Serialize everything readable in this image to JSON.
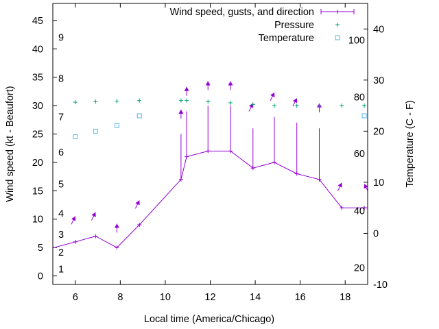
{
  "chart_data": {
    "type": "line",
    "xlabel": "Local time (America/Chicago)",
    "ylabel": "Wind speed (kt - Beaufort)",
    "y2label": "Temperature (C - F)",
    "xlim": [
      5,
      19
    ],
    "ylim": [
      -1.5,
      48
    ],
    "y2lim": [
      -10,
      45
    ],
    "x_ticks": [
      6,
      8,
      10,
      12,
      14,
      16,
      18
    ],
    "y_ticks": [
      0,
      5,
      10,
      15,
      20,
      25,
      30,
      35,
      40,
      45
    ],
    "y2_ticks": [
      -10,
      0,
      10,
      20,
      30,
      40
    ],
    "beaufort_labels": [
      {
        "text": "1",
        "y": 1.2
      },
      {
        "text": "2",
        "y": 4.2
      },
      {
        "text": "3",
        "y": 7.3
      },
      {
        "text": "4",
        "y": 11.0
      },
      {
        "text": "5",
        "y": 16.2
      },
      {
        "text": "6",
        "y": 21.8
      },
      {
        "text": "7",
        "y": 28.0
      },
      {
        "text": "8",
        "y": 34.8
      },
      {
        "text": "9",
        "y": 42.0
      }
    ],
    "fahrenheit_labels": [
      {
        "text": "20",
        "y2": -6.7
      },
      {
        "text": "40",
        "y2": 4.4
      },
      {
        "text": "60",
        "y2": 15.6
      },
      {
        "text": "80",
        "y2": 26.7
      },
      {
        "text": "100",
        "y2": 37.8
      }
    ],
    "legend": {
      "position": "top-right",
      "entries": [
        {
          "label": "Wind speed, gusts, and direction",
          "color": "#9400d3"
        },
        {
          "label": "Pressure",
          "color": "#009e73"
        },
        {
          "label": "Temperature",
          "color": "#56b4e9"
        }
      ]
    },
    "series": [
      {
        "name": "Wind speed, gusts, and direction",
        "color": "#9400d3",
        "x": [
          4.6,
          6.0,
          6.9,
          7.85,
          8.85,
          10.7,
          10.95,
          11.9,
          12.9,
          13.9,
          14.85,
          15.85,
          16.85,
          17.85,
          18.85,
          19.3
        ],
        "y": [
          4.5,
          6,
          7,
          5,
          9,
          17,
          21,
          22,
          22,
          19,
          20,
          18,
          17,
          12,
          12,
          12
        ],
        "gusts": [
          null,
          null,
          null,
          null,
          null,
          25,
          29,
          30,
          30,
          26,
          28,
          27,
          26,
          null,
          null,
          null
        ],
        "arrows": [
          {
            "x": 6.0,
            "y": 10.5,
            "dir": "down-left"
          },
          {
            "x": 6.9,
            "y": 11.2,
            "dir": "down-left"
          },
          {
            "x": 7.85,
            "y": 9.2,
            "dir": "down"
          },
          {
            "x": 8.85,
            "y": 13.3,
            "dir": "down-left"
          },
          {
            "x": 10.7,
            "y": 29.3,
            "dir": "down"
          },
          {
            "x": 10.95,
            "y": 33.3,
            "dir": "down"
          },
          {
            "x": 11.9,
            "y": 34.3,
            "dir": "down"
          },
          {
            "x": 12.9,
            "y": 34.3,
            "dir": "down"
          },
          {
            "x": 13.9,
            "y": 30.4,
            "dir": "down-left"
          },
          {
            "x": 14.85,
            "y": 32.3,
            "dir": "down-left"
          },
          {
            "x": 15.85,
            "y": 31.3,
            "dir": "down-left"
          },
          {
            "x": 16.85,
            "y": 30.4,
            "dir": "down"
          },
          {
            "x": 17.85,
            "y": 16.4,
            "dir": "down-left"
          },
          {
            "x": 18.85,
            "y": 16.2,
            "dir": "down-right"
          }
        ]
      },
      {
        "name": "Pressure",
        "color": "#009e73",
        "x": [
          6.0,
          6.9,
          7.85,
          8.85,
          10.7,
          10.95,
          11.9,
          12.9,
          13.9,
          14.85,
          15.85,
          16.85,
          17.85,
          18.85
        ],
        "y": [
          30.6,
          30.7,
          30.8,
          30.9,
          30.9,
          30.9,
          30.7,
          30.5,
          30.2,
          30.0,
          30.0,
          30.0,
          30.0,
          30.0
        ]
      },
      {
        "name": "Temperature",
        "color": "#56b4e9",
        "axis": "y2",
        "x": [
          6.0,
          6.9,
          7.85,
          8.85,
          18.85
        ],
        "y": [
          18.9,
          20.0,
          21.1,
          23.0,
          23.0
        ]
      }
    ]
  }
}
